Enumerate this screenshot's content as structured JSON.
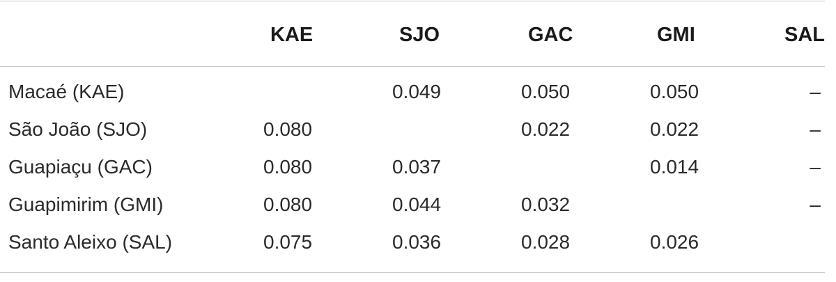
{
  "table": {
    "columns": [
      "KAE",
      "SJO",
      "GAC",
      "GMI",
      "SAL"
    ],
    "rows": [
      {
        "label": "Macaé (KAE)",
        "values": [
          "",
          "0.049",
          "0.050",
          "0.050",
          "–"
        ]
      },
      {
        "label": "São João (SJO)",
        "values": [
          "0.080",
          "",
          "0.022",
          "0.022",
          "–"
        ]
      },
      {
        "label": "Guapiaçu (GAC)",
        "values": [
          "0.080",
          "0.037",
          "",
          "0.014",
          "–"
        ]
      },
      {
        "label": "Guapimirim (GMI)",
        "values": [
          "0.080",
          "0.044",
          "0.032",
          "",
          "–"
        ]
      },
      {
        "label": "Santo Aleixo (SAL)",
        "values": [
          "0.075",
          "0.036",
          "0.028",
          "0.026",
          ""
        ]
      }
    ]
  }
}
